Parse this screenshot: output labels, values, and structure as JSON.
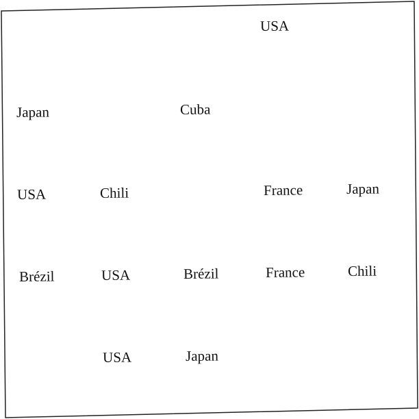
{
  "words": [
    "USA",
    "Japan",
    "Cuba",
    "USA",
    "Chili",
    "France",
    "Japan",
    "Brézil",
    "USA",
    "Brézil",
    "France",
    "Chili",
    "USA",
    "Japan"
  ],
  "colors": {
    "background": "#ffffff",
    "border": "#222222",
    "text": "#111111"
  }
}
